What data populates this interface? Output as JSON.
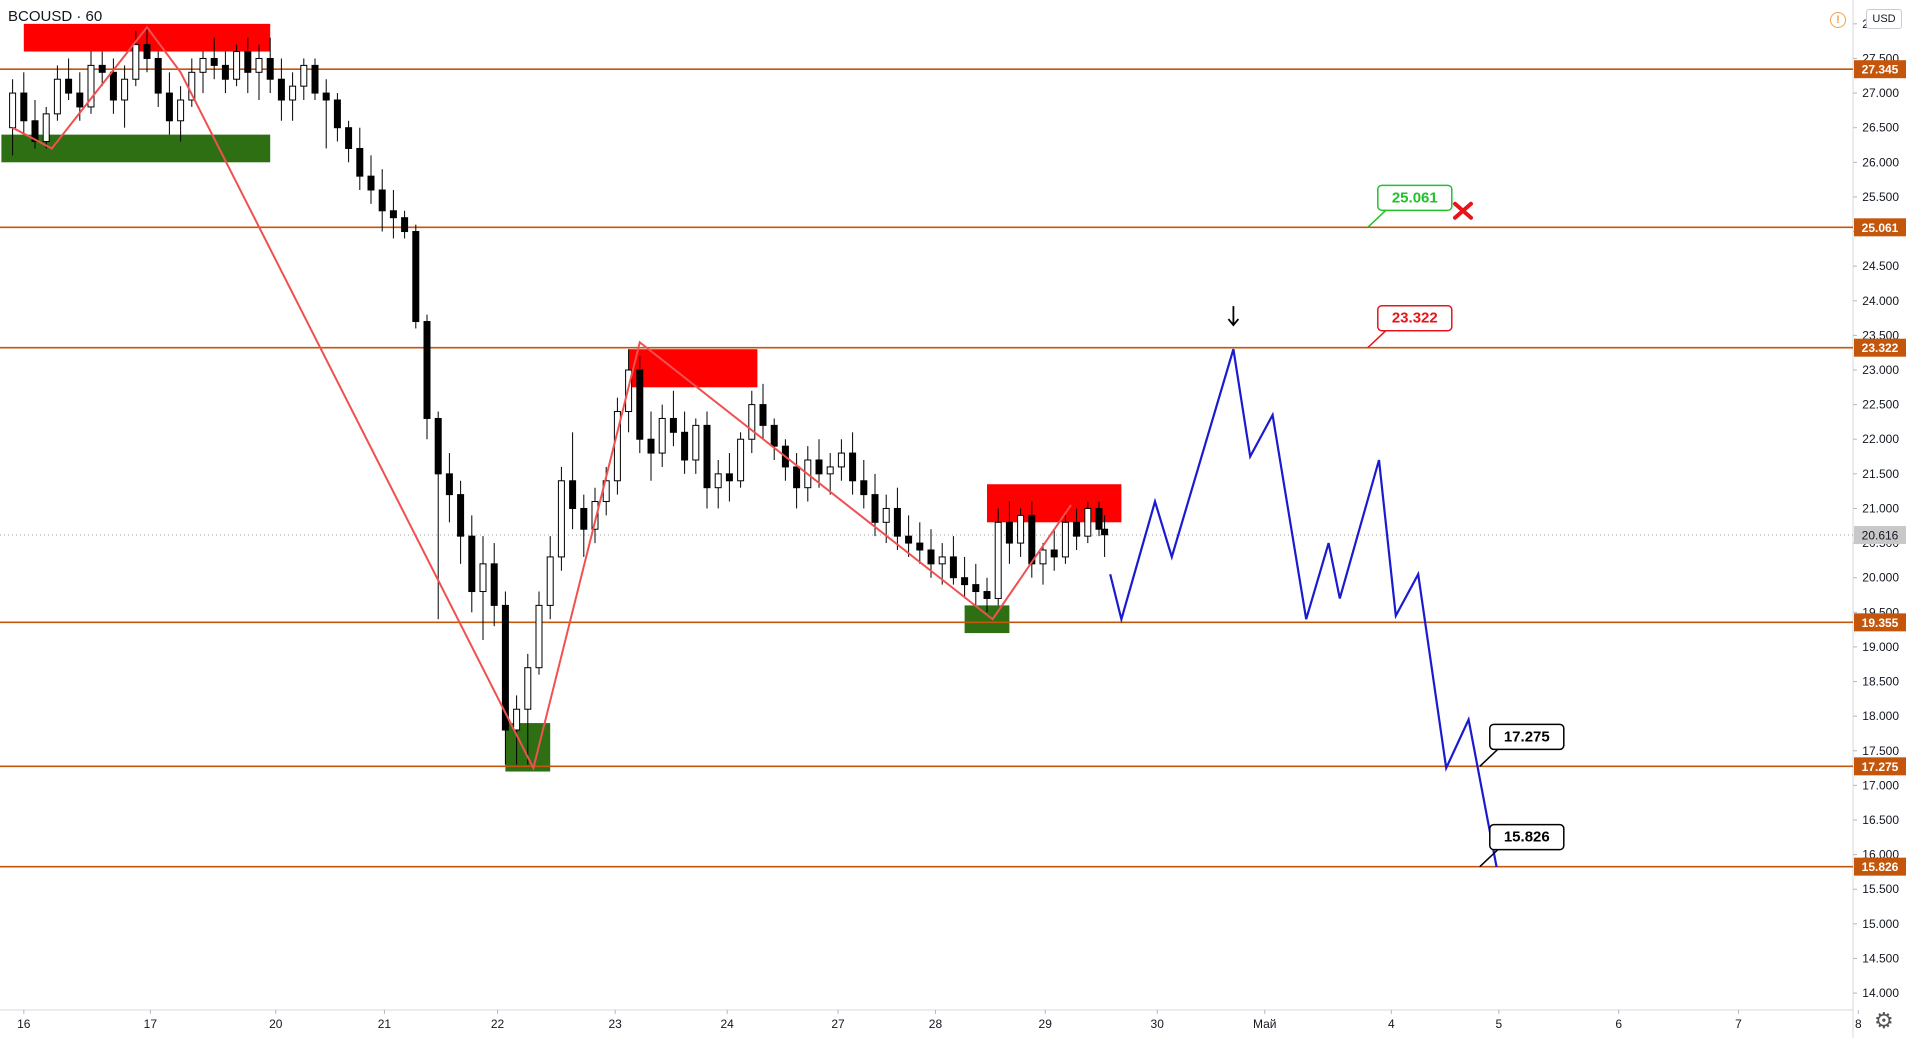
{
  "symbol": "BCOUSD",
  "interval": "60",
  "currency": "USD",
  "alert_icon": "alert-circle-icon",
  "settings_icon": "gear-icon",
  "colors": {
    "level_line": "#c4560b",
    "level_tag": "#c4560b",
    "up_candle": "#ffffff",
    "down_candle": "#000000",
    "supply_zone": "#ff0000",
    "demand_zone": "#2e6f14",
    "zigzag": "#f05050",
    "forecast": "#1a1ad0",
    "last_price_tag": "#c8c8c8"
  },
  "chart_data": {
    "type": "candlestick",
    "x_axis_labels": [
      "16",
      "17",
      "20",
      "21",
      "22",
      "23",
      "24",
      "27",
      "28",
      "29",
      "30",
      "Май",
      "4",
      "5",
      "6",
      "7",
      "8"
    ],
    "y_axis_ticks": [
      "28.000",
      "27.500",
      "27.000",
      "26.500",
      "26.000",
      "25.500",
      "25.000",
      "24.500",
      "24.000",
      "23.500",
      "23.000",
      "22.500",
      "22.000",
      "21.500",
      "21.000",
      "20.500",
      "20.000",
      "19.500",
      "19.000",
      "18.500",
      "18.000",
      "17.500",
      "17.000",
      "16.500",
      "16.000",
      "15.500",
      "15.000",
      "14.500",
      "14.000"
    ],
    "ylim": [
      13.9,
      28.2
    ],
    "last_price": "20.616",
    "levels": [
      {
        "value": "27.345"
      },
      {
        "value": "25.061"
      },
      {
        "value": "23.322"
      },
      {
        "value": "19.355"
      },
      {
        "value": "17.275"
      },
      {
        "value": "15.826"
      }
    ],
    "callouts": [
      {
        "text": "25.061",
        "style": "green",
        "x": 11.9,
        "y": 25.061
      },
      {
        "text": "23.322",
        "style": "red",
        "x": 11.9,
        "y": 23.322
      },
      {
        "text": "17.275",
        "style": "black",
        "x": 12.9,
        "y": 17.275
      },
      {
        "text": "15.826",
        "style": "black",
        "x": 12.9,
        "y": 15.826
      }
    ],
    "zones": [
      {
        "kind": "supply",
        "x1": -0.1,
        "x2": 2.1,
        "y1": 27.6,
        "y2": 28.0
      },
      {
        "kind": "demand",
        "x1": -0.3,
        "x2": 2.1,
        "y1": 26.0,
        "y2": 26.4
      },
      {
        "kind": "supply",
        "x1": 5.3,
        "x2": 6.45,
        "y1": 22.75,
        "y2": 23.3
      },
      {
        "kind": "demand",
        "x1": 4.2,
        "x2": 4.6,
        "y1": 17.2,
        "y2": 17.9
      },
      {
        "kind": "supply",
        "x1": 8.5,
        "x2": 9.7,
        "y1": 20.8,
        "y2": 21.35
      },
      {
        "kind": "demand",
        "x1": 8.3,
        "x2": 8.7,
        "y1": 19.2,
        "y2": 19.6
      }
    ],
    "zigzag": [
      [
        -0.2,
        26.5
      ],
      [
        0.15,
        26.2
      ],
      [
        1.0,
        27.95
      ],
      [
        1.3,
        27.3
      ],
      [
        4.45,
        17.25
      ],
      [
        5.4,
        23.4
      ],
      [
        8.55,
        19.4
      ],
      [
        9.25,
        21.05
      ]
    ],
    "forecast_path": [
      [
        9.6,
        20.05
      ],
      [
        9.7,
        19.4
      ],
      [
        10.0,
        21.1
      ],
      [
        10.15,
        20.3
      ],
      [
        10.7,
        23.3
      ],
      [
        10.85,
        21.75
      ],
      [
        11.05,
        22.35
      ],
      [
        11.35,
        19.4
      ],
      [
        11.55,
        20.5
      ],
      [
        11.65,
        19.7
      ],
      [
        12.0,
        21.7
      ],
      [
        12.15,
        19.45
      ],
      [
        12.35,
        20.05
      ],
      [
        12.6,
        17.25
      ],
      [
        12.8,
        17.95
      ],
      [
        13.05,
        15.82
      ]
    ],
    "marks": [
      {
        "kind": "x-mark-icon",
        "x": 12.75,
        "y": 25.3
      },
      {
        "kind": "arrow-down-icon",
        "x": 10.7,
        "y": 23.75
      }
    ],
    "candles": [
      [
        -0.2,
        26.5,
        27.2,
        26.1,
        27.0
      ],
      [
        -0.1,
        27.0,
        27.3,
        26.4,
        26.6
      ],
      [
        0.0,
        26.6,
        26.9,
        26.2,
        26.3
      ],
      [
        0.1,
        26.3,
        26.8,
        26.2,
        26.7
      ],
      [
        0.2,
        26.7,
        27.4,
        26.6,
        27.2
      ],
      [
        0.3,
        27.2,
        27.5,
        26.9,
        27.0
      ],
      [
        0.4,
        27.0,
        27.3,
        26.6,
        26.8
      ],
      [
        0.5,
        26.8,
        27.6,
        26.7,
        27.4
      ],
      [
        0.6,
        27.4,
        27.6,
        27.1,
        27.3
      ],
      [
        0.7,
        27.3,
        27.5,
        26.7,
        26.9
      ],
      [
        0.8,
        26.9,
        27.4,
        26.5,
        27.2
      ],
      [
        0.9,
        27.2,
        27.9,
        27.1,
        27.7
      ],
      [
        1.0,
        27.7,
        27.95,
        27.3,
        27.5
      ],
      [
        1.1,
        27.5,
        27.6,
        26.8,
        27.0
      ],
      [
        1.2,
        27.0,
        27.3,
        26.4,
        26.6
      ],
      [
        1.3,
        26.6,
        27.1,
        26.3,
        26.9
      ],
      [
        1.4,
        26.9,
        27.5,
        26.8,
        27.3
      ],
      [
        1.5,
        27.3,
        27.6,
        27.0,
        27.5
      ],
      [
        1.6,
        27.5,
        27.8,
        27.2,
        27.4
      ],
      [
        1.7,
        27.4,
        27.6,
        27.0,
        27.2
      ],
      [
        1.8,
        27.2,
        27.7,
        27.1,
        27.6
      ],
      [
        1.9,
        27.6,
        27.8,
        27.0,
        27.3
      ],
      [
        2.0,
        27.3,
        27.7,
        26.9,
        27.5
      ],
      [
        2.1,
        27.5,
        27.8,
        27.0,
        27.2
      ],
      [
        2.2,
        27.2,
        27.5,
        26.6,
        26.9
      ],
      [
        2.3,
        26.9,
        27.3,
        26.6,
        27.1
      ],
      [
        2.4,
        27.1,
        27.5,
        26.9,
        27.4
      ],
      [
        2.5,
        27.4,
        27.5,
        26.9,
        27.0
      ],
      [
        2.6,
        27.0,
        27.2,
        26.2,
        26.9
      ],
      [
        2.7,
        26.9,
        27.0,
        26.3,
        26.5
      ],
      [
        2.8,
        26.5,
        26.6,
        26.0,
        26.2
      ],
      [
        2.9,
        26.2,
        26.5,
        25.6,
        25.8
      ],
      [
        3.0,
        25.8,
        26.1,
        25.4,
        25.6
      ],
      [
        3.1,
        25.6,
        25.9,
        25.0,
        25.3
      ],
      [
        3.2,
        25.3,
        25.6,
        24.9,
        25.2
      ],
      [
        3.3,
        25.2,
        25.3,
        24.9,
        25.0
      ],
      [
        3.4,
        25.0,
        25.1,
        23.6,
        23.7
      ],
      [
        3.5,
        23.7,
        23.8,
        22.0,
        22.3
      ],
      [
        3.6,
        22.3,
        22.4,
        19.4,
        21.5
      ],
      [
        3.7,
        21.5,
        21.8,
        20.8,
        21.2
      ],
      [
        3.8,
        21.2,
        21.4,
        20.2,
        20.6
      ],
      [
        3.9,
        20.6,
        20.9,
        19.5,
        19.8
      ],
      [
        4.0,
        19.8,
        20.6,
        19.1,
        20.2
      ],
      [
        4.1,
        20.2,
        20.5,
        19.3,
        19.6
      ],
      [
        4.2,
        19.6,
        19.8,
        17.3,
        17.8
      ],
      [
        4.3,
        17.8,
        18.3,
        17.3,
        18.1
      ],
      [
        4.4,
        18.1,
        18.9,
        17.3,
        18.7
      ],
      [
        4.5,
        18.7,
        19.8,
        18.6,
        19.6
      ],
      [
        4.6,
        19.6,
        20.6,
        19.4,
        20.3
      ],
      [
        4.7,
        20.3,
        21.6,
        20.1,
        21.4
      ],
      [
        4.8,
        21.4,
        22.1,
        20.7,
        21.0
      ],
      [
        4.9,
        21.0,
        21.2,
        20.3,
        20.7
      ],
      [
        5.0,
        20.7,
        21.3,
        20.5,
        21.1
      ],
      [
        5.1,
        21.1,
        21.6,
        20.9,
        21.4
      ],
      [
        5.2,
        21.4,
        22.6,
        21.2,
        22.4
      ],
      [
        5.3,
        22.4,
        23.3,
        22.1,
        23.0
      ],
      [
        5.4,
        23.0,
        23.2,
        21.8,
        22.0
      ],
      [
        5.5,
        22.0,
        22.4,
        21.4,
        21.8
      ],
      [
        5.6,
        21.8,
        22.5,
        21.6,
        22.3
      ],
      [
        5.7,
        22.3,
        22.7,
        21.9,
        22.1
      ],
      [
        5.8,
        22.1,
        22.4,
        21.5,
        21.7
      ],
      [
        5.9,
        21.7,
        22.3,
        21.5,
        22.2
      ],
      [
        6.0,
        22.2,
        22.4,
        21.0,
        21.3
      ],
      [
        6.1,
        21.3,
        21.7,
        21.0,
        21.5
      ],
      [
        6.2,
        21.5,
        21.8,
        21.1,
        21.4
      ],
      [
        6.3,
        21.4,
        22.1,
        21.3,
        22.0
      ],
      [
        6.4,
        22.0,
        22.7,
        21.8,
        22.5
      ],
      [
        6.5,
        22.5,
        22.8,
        22.0,
        22.2
      ],
      [
        6.6,
        22.2,
        22.3,
        21.7,
        21.9
      ],
      [
        6.7,
        21.9,
        22.0,
        21.4,
        21.6
      ],
      [
        6.8,
        21.6,
        21.8,
        21.0,
        21.3
      ],
      [
        6.9,
        21.3,
        21.9,
        21.1,
        21.7
      ],
      [
        7.0,
        21.7,
        22.0,
        21.3,
        21.5
      ],
      [
        7.1,
        21.5,
        21.8,
        21.2,
        21.6
      ],
      [
        7.2,
        21.6,
        22.0,
        21.4,
        21.8
      ],
      [
        7.3,
        21.8,
        22.1,
        21.2,
        21.4
      ],
      [
        7.4,
        21.4,
        21.7,
        21.0,
        21.2
      ],
      [
        7.5,
        21.2,
        21.5,
        20.6,
        20.8
      ],
      [
        7.6,
        20.8,
        21.2,
        20.5,
        21.0
      ],
      [
        7.7,
        21.0,
        21.3,
        20.4,
        20.6
      ],
      [
        7.8,
        20.6,
        20.9,
        20.3,
        20.5
      ],
      [
        7.9,
        20.5,
        20.8,
        20.2,
        20.4
      ],
      [
        8.0,
        20.4,
        20.7,
        20.0,
        20.2
      ],
      [
        8.1,
        20.2,
        20.5,
        19.9,
        20.3
      ],
      [
        8.2,
        20.3,
        20.6,
        19.9,
        20.0
      ],
      [
        8.3,
        20.0,
        20.3,
        19.7,
        19.9
      ],
      [
        8.4,
        19.9,
        20.2,
        19.6,
        19.8
      ],
      [
        8.5,
        19.8,
        20.0,
        19.5,
        19.7
      ],
      [
        8.6,
        19.7,
        21.0,
        19.6,
        20.8
      ],
      [
        8.7,
        20.8,
        21.1,
        20.2,
        20.5
      ],
      [
        8.8,
        20.5,
        21.0,
        20.3,
        20.9
      ],
      [
        8.9,
        20.9,
        21.1,
        20.0,
        20.2
      ],
      [
        9.0,
        20.2,
        20.5,
        19.9,
        20.4
      ],
      [
        9.1,
        20.4,
        20.7,
        20.1,
        20.3
      ],
      [
        9.2,
        20.3,
        20.9,
        20.2,
        20.8
      ],
      [
        9.3,
        20.8,
        21.0,
        20.4,
        20.6
      ],
      [
        9.4,
        20.6,
        21.1,
        20.5,
        21.0
      ],
      [
        9.5,
        21.0,
        21.1,
        20.6,
        20.7
      ],
      [
        9.55,
        20.7,
        20.9,
        20.3,
        20.62
      ]
    ]
  }
}
